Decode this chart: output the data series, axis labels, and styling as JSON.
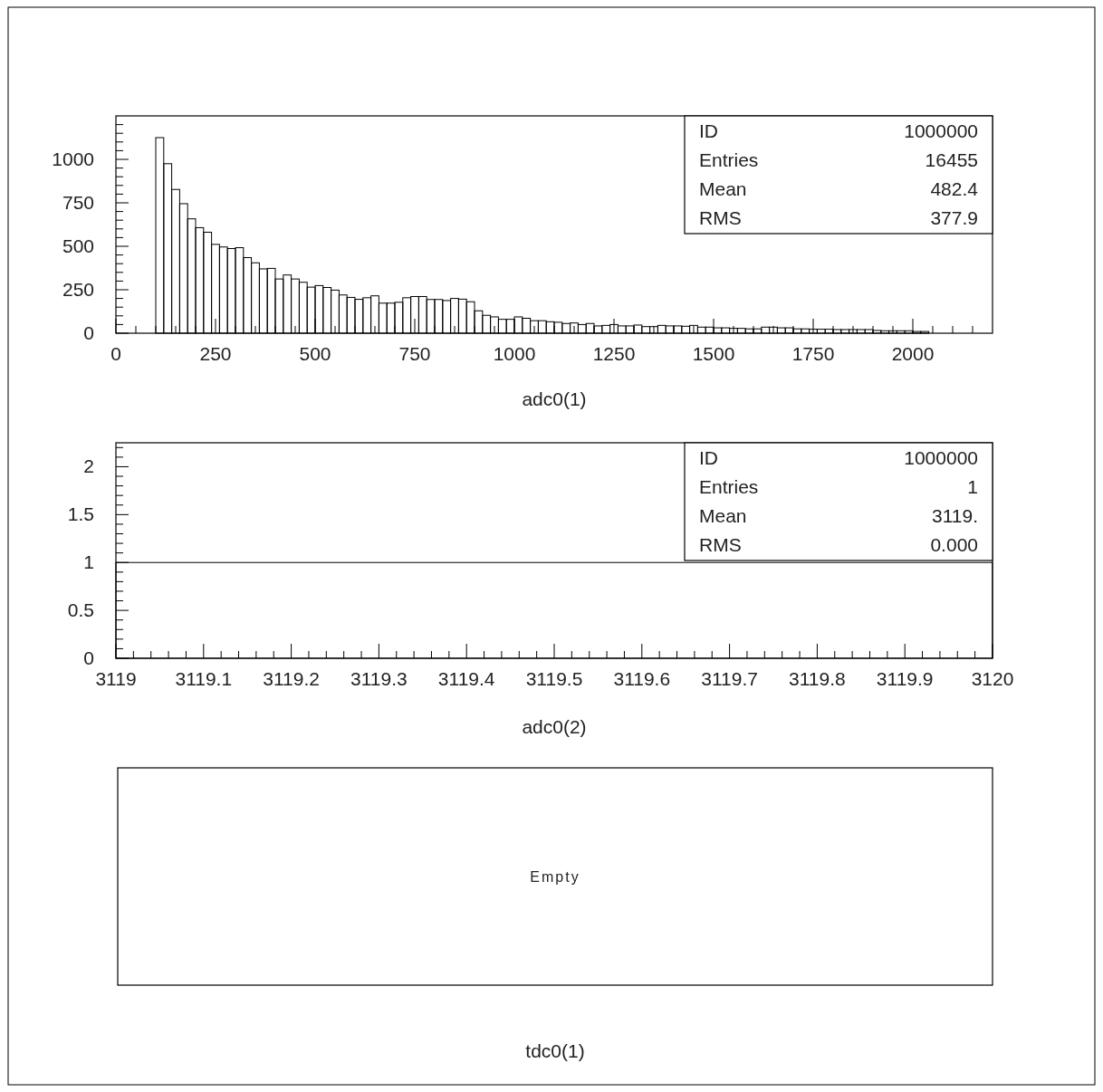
{
  "chart_data": [
    {
      "type": "histogram",
      "xlabel": "adc0(1)",
      "color": "#000000",
      "xlim": [
        0,
        2200
      ],
      "ylim": [
        0,
        1250
      ],
      "xticks": [
        0,
        {
          "value": 50,
          "label": null
        },
        {
          "value": 100,
          "label": null
        },
        {
          "value": 150,
          "label": null
        },
        {
          "value": 200,
          "label": null
        },
        250,
        {
          "value": 300,
          "label": null
        },
        {
          "value": 350,
          "label": null
        },
        {
          "value": 400,
          "label": null
        },
        {
          "value": 450,
          "label": null
        },
        500,
        {
          "value": 550,
          "label": null
        },
        {
          "value": 600,
          "label": null
        },
        {
          "value": 650,
          "label": null
        },
        {
          "value": 700,
          "label": null
        },
        750,
        {
          "value": 800,
          "label": null
        },
        {
          "value": 850,
          "label": null
        },
        {
          "value": 900,
          "label": null
        },
        {
          "value": 950,
          "label": null
        },
        1000,
        {
          "value": 1050,
          "label": null
        },
        {
          "value": 1100,
          "label": null
        },
        {
          "value": 1150,
          "label": null
        },
        {
          "value": 1200,
          "label": null
        },
        1250,
        {
          "value": 1300,
          "label": null
        },
        {
          "value": 1350,
          "label": null
        },
        {
          "value": 1400,
          "label": null
        },
        {
          "value": 1450,
          "label": null
        },
        1500,
        {
          "value": 1550,
          "label": null
        },
        {
          "value": 1600,
          "label": null
        },
        {
          "value": 1650,
          "label": null
        },
        {
          "value": 1700,
          "label": null
        },
        1750,
        {
          "value": 1800,
          "label": null
        },
        {
          "value": 1850,
          "label": null
        },
        {
          "value": 1900,
          "label": null
        },
        {
          "value": 1950,
          "label": null
        },
        2000,
        {
          "value": 2050,
          "label": null
        },
        {
          "value": 2100,
          "label": null
        },
        {
          "value": 2150,
          "label": null
        }
      ],
      "yticks": [
        0,
        {
          "value": 50,
          "label": null
        },
        {
          "value": 100,
          "label": null
        },
        {
          "value": 150,
          "label": null
        },
        {
          "value": 200,
          "label": null
        },
        250,
        {
          "value": 300,
          "label": null
        },
        {
          "value": 350,
          "label": null
        },
        {
          "value": 400,
          "label": null
        },
        {
          "value": 450,
          "label": null
        },
        500,
        {
          "value": 550,
          "label": null
        },
        {
          "value": 600,
          "label": null
        },
        {
          "value": 650,
          "label": null
        },
        {
          "value": 700,
          "label": null
        },
        750,
        {
          "value": 800,
          "label": null
        },
        {
          "value": 850,
          "label": null
        },
        {
          "value": 900,
          "label": null
        },
        {
          "value": 950,
          "label": null
        },
        1000,
        {
          "value": 1050,
          "label": null
        },
        {
          "value": 1100,
          "label": null
        },
        {
          "value": 1150,
          "label": null
        },
        {
          "value": 1200,
          "label": null
        }
      ],
      "bins": [
        100,
        120,
        140,
        160,
        180,
        200,
        220,
        240,
        260,
        280,
        300,
        320,
        340,
        360,
        380,
        400,
        420,
        440,
        460,
        480,
        500,
        520,
        540,
        560,
        580,
        600,
        620,
        640,
        660,
        680,
        700,
        720,
        740,
        760,
        780,
        800,
        820,
        840,
        860,
        880,
        900,
        920,
        940,
        960,
        980,
        1000,
        1020,
        1040,
        1060,
        1080,
        1100,
        1120,
        1140,
        1160,
        1180,
        1200,
        1220,
        1240,
        1260,
        1280,
        1300,
        1320,
        1340,
        1360,
        1380,
        1400,
        1420,
        1440,
        1460,
        1480,
        1500,
        1520,
        1540,
        1560,
        1580,
        1600,
        1620,
        1640,
        1660,
        1680,
        1700,
        1720,
        1740,
        1760,
        1780,
        1800,
        1820,
        1840,
        1860,
        1880,
        1900,
        1920,
        1940,
        1960,
        1980,
        2000,
        2020,
        2040
      ],
      "values": [
        1125,
        975,
        827,
        745,
        658,
        607,
        581,
        511,
        496,
        487,
        492,
        435,
        405,
        370,
        373,
        312,
        335,
        312,
        293,
        265,
        274,
        263,
        248,
        220,
        206,
        195,
        204,
        215,
        173,
        173,
        178,
        204,
        211,
        211,
        194,
        194,
        188,
        200,
        196,
        181,
        129,
        103,
        94,
        80,
        80,
        94,
        86,
        72,
        72,
        66,
        63,
        56,
        59,
        50,
        56,
        42,
        45,
        50,
        42,
        42,
        47,
        38,
        38,
        45,
        42,
        42,
        40,
        45,
        35,
        35,
        31,
        31,
        28,
        28,
        25,
        25,
        35,
        35,
        31,
        31,
        25,
        25,
        23,
        23,
        23,
        21,
        21,
        21,
        21,
        21,
        16,
        14,
        14,
        14,
        14,
        10,
        10
      ],
      "annotations": [
        "ID 1000000",
        "Entries 16455",
        "Mean 482.4",
        "RMS 377.9"
      ]
    },
    {
      "type": "histogram",
      "xlabel": "adc0(2)",
      "color": "#000000",
      "xlim": [
        3119,
        3120
      ],
      "ylim": [
        0,
        2.25
      ],
      "xticks": [
        3119,
        {
          "value": 3119.02,
          "label": null
        },
        {
          "value": 3119.04,
          "label": null
        },
        {
          "value": 3119.06,
          "label": null
        },
        {
          "value": 3119.08,
          "label": null
        },
        3119.1,
        {
          "value": 3119.12,
          "label": null
        },
        {
          "value": 3119.14,
          "label": null
        },
        {
          "value": 3119.16,
          "label": null
        },
        {
          "value": 3119.18,
          "label": null
        },
        3119.2,
        {
          "value": 3119.22,
          "label": null
        },
        {
          "value": 3119.24,
          "label": null
        },
        {
          "value": 3119.26,
          "label": null
        },
        {
          "value": 3119.28,
          "label": null
        },
        3119.3,
        {
          "value": 3119.32,
          "label": null
        },
        {
          "value": 3119.34,
          "label": null
        },
        {
          "value": 3119.36,
          "label": null
        },
        {
          "value": 3119.38,
          "label": null
        },
        3119.4,
        {
          "value": 3119.42,
          "label": null
        },
        {
          "value": 3119.44,
          "label": null
        },
        {
          "value": 3119.46,
          "label": null
        },
        {
          "value": 3119.48,
          "label": null
        },
        3119.5,
        {
          "value": 3119.52,
          "label": null
        },
        {
          "value": 3119.54,
          "label": null
        },
        {
          "value": 3119.56,
          "label": null
        },
        {
          "value": 3119.58,
          "label": null
        },
        3119.6,
        {
          "value": 3119.62,
          "label": null
        },
        {
          "value": 3119.64,
          "label": null
        },
        {
          "value": 3119.66,
          "label": null
        },
        {
          "value": 3119.68,
          "label": null
        },
        3119.7,
        {
          "value": 3119.72,
          "label": null
        },
        {
          "value": 3119.74,
          "label": null
        },
        {
          "value": 3119.76,
          "label": null
        },
        {
          "value": 3119.78,
          "label": null
        },
        3119.8,
        {
          "value": 3119.82,
          "label": null
        },
        {
          "value": 3119.84,
          "label": null
        },
        {
          "value": 3119.86,
          "label": null
        },
        {
          "value": 3119.88,
          "label": null
        },
        3119.9,
        {
          "value": 3119.92,
          "label": null
        },
        {
          "value": 3119.94,
          "label": null
        },
        {
          "value": 3119.96,
          "label": null
        },
        {
          "value": 3119.98,
          "label": null
        },
        3120
      ],
      "yticks": [
        0,
        {
          "value": 0.1,
          "label": null
        },
        {
          "value": 0.2,
          "label": null
        },
        {
          "value": 0.3,
          "label": null
        },
        {
          "value": 0.4,
          "label": null
        },
        0.5,
        {
          "value": 0.6,
          "label": null
        },
        {
          "value": 0.7,
          "label": null
        },
        {
          "value": 0.8,
          "label": null
        },
        {
          "value": 0.9,
          "label": null
        },
        1,
        {
          "value": 1.1,
          "label": null
        },
        {
          "value": 1.2,
          "label": null
        },
        {
          "value": 1.3,
          "label": null
        },
        {
          "value": 1.4,
          "label": null
        },
        1.5,
        {
          "value": 1.6,
          "label": null
        },
        {
          "value": 1.7,
          "label": null
        },
        {
          "value": 1.8,
          "label": null
        },
        {
          "value": 1.9,
          "label": null
        },
        2,
        {
          "value": 2.1,
          "label": null
        },
        {
          "value": 2.2,
          "label": null
        }
      ],
      "bins": [
        3119,
        3120
      ],
      "values": [
        1
      ],
      "annotations": [
        "ID 1000000",
        "Entries 1",
        "Mean 3119.",
        "RMS 0.000"
      ]
    },
    {
      "type": "other",
      "xlabel": "tdc0(1)",
      "annotations": [
        "Empty"
      ]
    }
  ]
}
